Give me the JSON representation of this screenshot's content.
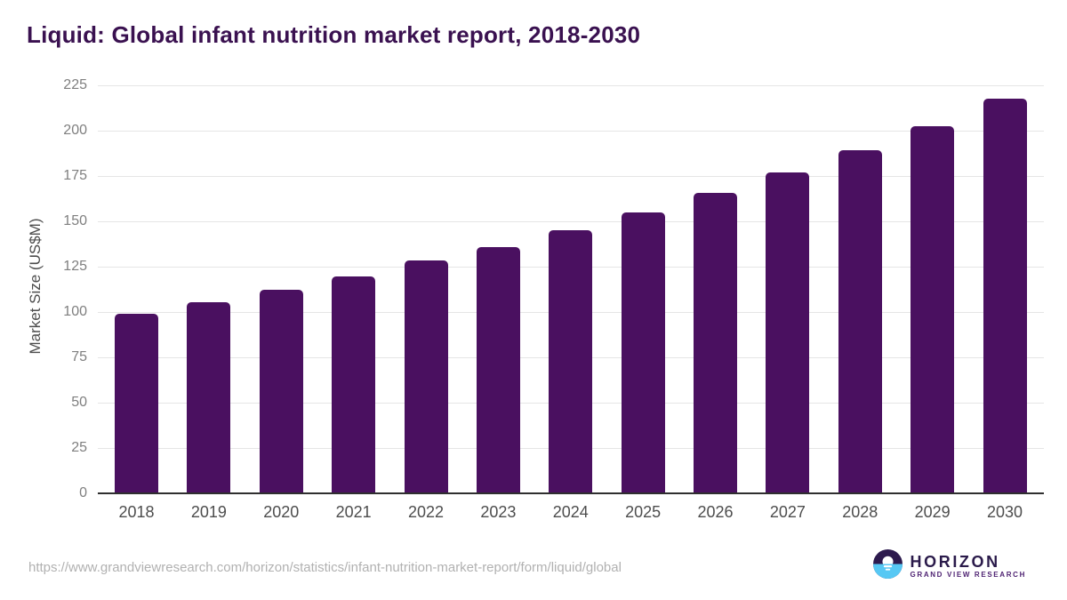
{
  "header": {
    "title": "Liquid: Global infant nutrition market report, 2018-2030"
  },
  "chart_data": {
    "type": "bar",
    "title": "Liquid: Global infant nutrition market report, 2018-2030",
    "categories": [
      "2018",
      "2019",
      "2020",
      "2021",
      "2022",
      "2023",
      "2024",
      "2025",
      "2026",
      "2027",
      "2028",
      "2029",
      "2030"
    ],
    "values": [
      99.5,
      106.1,
      112.7,
      120.2,
      128.8,
      136.5,
      145.8,
      155.4,
      166.0,
      177.5,
      189.7,
      203.0,
      217.9
    ],
    "xlabel": "",
    "ylabel": "Market Size (US$M)",
    "ylim": [
      0,
      225
    ],
    "ytick_step": 25,
    "grid": true,
    "legend": "none",
    "bar_color": "#4a1060"
  },
  "colors": {
    "bar": "#4a1060",
    "title": "#3a1150",
    "grid": "#e5e5e5",
    "axis": "#2f2f2f",
    "tick_text": "#7f7f7f",
    "category_text": "#4d4d4d",
    "footer_text": "#b1b1b1",
    "logo_dark": "#2d1a4e",
    "logo_blue": "#57c8f4"
  },
  "footer": {
    "url": "https://www.grandviewresearch.com/horizon/statistics/infant-nutrition-market-report/form/liquid/global"
  },
  "logo": {
    "icon": "horizon-sunset-icon",
    "name": "HORIZON",
    "subtitle": "GRAND VIEW RESEARCH"
  }
}
